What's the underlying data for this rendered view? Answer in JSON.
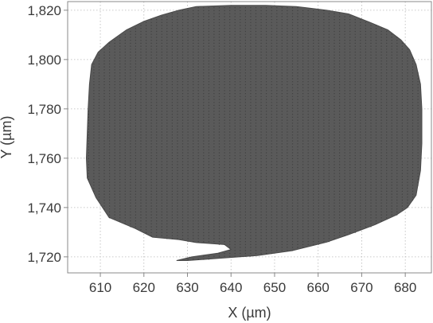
{
  "chart_data": {
    "type": "scatter",
    "title": "",
    "xlabel": "X (µm)",
    "ylabel": "Y (µm)",
    "xlim": [
      602.5,
      686
    ],
    "ylim": [
      1713.5,
      1823.5
    ],
    "x_ticks": [
      610,
      620,
      630,
      640,
      650,
      660,
      670,
      680
    ],
    "x_tick_labels": [
      "610",
      "620",
      "630",
      "640",
      "650",
      "660",
      "670",
      "680"
    ],
    "y_ticks": [
      1720,
      1740,
      1760,
      1780,
      1800,
      1820
    ],
    "y_tick_labels": [
      "1,720",
      "1,740",
      "1,760",
      "1,780",
      "1,800",
      "1,820"
    ],
    "grid": true,
    "legend": "none",
    "series": [
      {
        "marker_color": "#4a4a4a",
        "description_points": "dense grid of measurement points filling the region outline below",
        "region_outline": [
          [
            632,
            1821.5
          ],
          [
            640,
            1822
          ],
          [
            648,
            1822
          ],
          [
            655,
            1821.5
          ],
          [
            662,
            1820
          ],
          [
            667,
            1818.5
          ],
          [
            672,
            1815
          ],
          [
            676,
            1812
          ],
          [
            679,
            1808
          ],
          [
            681,
            1804
          ],
          [
            682.5,
            1798
          ],
          [
            683.5,
            1790
          ],
          [
            683.8,
            1780
          ],
          [
            683.8,
            1766
          ],
          [
            683.5,
            1755
          ],
          [
            682.5,
            1745
          ],
          [
            680.5,
            1740
          ],
          [
            678,
            1737
          ],
          [
            673,
            1733
          ],
          [
            667,
            1729
          ],
          [
            662,
            1726
          ],
          [
            654,
            1722.5
          ],
          [
            646,
            1720.5
          ],
          [
            638,
            1719.5
          ],
          [
            630,
            1718.5
          ],
          [
            627.5,
            1718.5
          ],
          [
            631,
            1720
          ],
          [
            637,
            1721.5
          ],
          [
            640,
            1723
          ],
          [
            638.5,
            1725
          ],
          [
            632,
            1725.8
          ],
          [
            628,
            1727
          ],
          [
            622,
            1728
          ],
          [
            618,
            1731.5
          ],
          [
            612,
            1736
          ],
          [
            609,
            1744
          ],
          [
            607,
            1752
          ],
          [
            606.8,
            1760
          ],
          [
            607,
            1770
          ],
          [
            607.2,
            1780
          ],
          [
            607.5,
            1790
          ],
          [
            608,
            1798
          ],
          [
            609.5,
            1803
          ],
          [
            612,
            1807
          ],
          [
            616,
            1812
          ],
          [
            620,
            1815.5
          ],
          [
            624,
            1818
          ],
          [
            628,
            1820
          ]
        ],
        "grid_spacing": [
          0.45,
          0.45
        ]
      }
    ]
  }
}
